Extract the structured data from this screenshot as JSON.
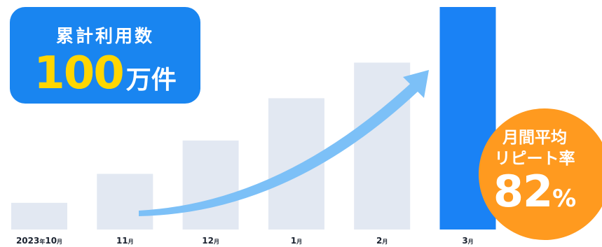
{
  "badge": {
    "label": "累計利用数",
    "number": "100",
    "unit": "万件"
  },
  "repeat": {
    "line1": "月間平均",
    "line2": "リピート率",
    "value": "82",
    "unit": "%"
  },
  "colors": {
    "bar": "#e2e8f2",
    "highlight_bar": "#1a82f5",
    "arrow": "#7cc0f7",
    "badge": "#1985f0",
    "number": "#ffd600",
    "circle": "#ff9a1f"
  },
  "chart_data": {
    "type": "bar",
    "categories": [
      {
        "main": "2023",
        "sub": "年",
        "main2": "10",
        "sub2": "月"
      },
      {
        "main": "11",
        "sub": "月"
      },
      {
        "main": "12",
        "sub": "月"
      },
      {
        "main": "1",
        "sub": "月"
      },
      {
        "main": "2",
        "sub": "月"
      },
      {
        "main": "3",
        "sub": "月"
      }
    ],
    "values": [
      12,
      25,
      40,
      59,
      75,
      100
    ],
    "highlight_index": 5,
    "trend": "upward arrow",
    "ylim": [
      0,
      100
    ]
  }
}
